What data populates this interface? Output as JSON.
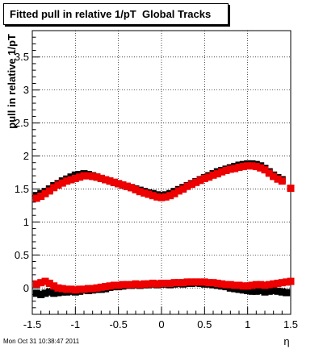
{
  "chart_data": {
    "type": "scatter",
    "title": "Fitted pull in relative 1/pT  Global Tracks",
    "xlabel": "η",
    "ylabel": "pull in relative 1/pT",
    "xlim": [
      -1.5,
      1.5
    ],
    "ylim": [
      -0.4,
      3.9
    ],
    "x_ticks": [
      "-1.5",
      "-1",
      "-0.5",
      "0",
      "0.5",
      "1",
      "1.5"
    ],
    "y_ticks": [
      "0",
      "0.5",
      "1",
      "1.5",
      "2",
      "2.5",
      "3",
      "3.5"
    ],
    "grid": true,
    "colors": {
      "black_series": "#000000",
      "red_series": "#ee0000"
    },
    "series": [
      {
        "color": "black",
        "points": [
          [
            -1.45,
            1.4
          ],
          [
            -1.4,
            1.43
          ],
          [
            -1.35,
            1.46
          ],
          [
            -1.3,
            1.5
          ],
          [
            -1.25,
            1.55
          ],
          [
            -1.2,
            1.58
          ],
          [
            -1.15,
            1.62
          ],
          [
            -1.1,
            1.65
          ],
          [
            -1.05,
            1.68
          ],
          [
            -1.0,
            1.71
          ],
          [
            -0.95,
            1.72
          ],
          [
            -0.9,
            1.73
          ],
          [
            -0.85,
            1.72
          ],
          [
            -0.8,
            1.7
          ],
          [
            -0.75,
            1.68
          ],
          [
            -0.7,
            1.66
          ],
          [
            -0.65,
            1.64
          ],
          [
            -0.6,
            1.62
          ],
          [
            -0.55,
            1.6
          ],
          [
            -0.5,
            1.58
          ],
          [
            -0.45,
            1.56
          ],
          [
            -0.4,
            1.54
          ],
          [
            -0.35,
            1.52
          ],
          [
            -0.3,
            1.5
          ],
          [
            -0.25,
            1.48
          ],
          [
            -0.2,
            1.46
          ],
          [
            -0.15,
            1.44
          ],
          [
            -0.1,
            1.43
          ],
          [
            -0.05,
            1.41
          ],
          [
            0.0,
            1.4
          ],
          [
            0.05,
            1.41
          ],
          [
            0.1,
            1.43
          ],
          [
            0.15,
            1.46
          ],
          [
            0.2,
            1.49
          ],
          [
            0.25,
            1.52
          ],
          [
            0.3,
            1.55
          ],
          [
            0.35,
            1.58
          ],
          [
            0.4,
            1.61
          ],
          [
            0.45,
            1.64
          ],
          [
            0.5,
            1.67
          ],
          [
            0.55,
            1.7
          ],
          [
            0.6,
            1.73
          ],
          [
            0.65,
            1.76
          ],
          [
            0.7,
            1.78
          ],
          [
            0.75,
            1.8
          ],
          [
            0.8,
            1.82
          ],
          [
            0.85,
            1.84
          ],
          [
            0.9,
            1.86
          ],
          [
            0.95,
            1.87
          ],
          [
            1.0,
            1.88
          ],
          [
            1.05,
            1.88
          ],
          [
            1.1,
            1.87
          ],
          [
            1.15,
            1.85
          ],
          [
            1.2,
            1.81
          ],
          [
            1.25,
            1.76
          ],
          [
            1.3,
            1.71
          ],
          [
            1.35,
            1.67
          ],
          [
            1.4,
            1.64
          ],
          [
            -1.45,
            -0.08
          ],
          [
            -1.4,
            -0.1
          ],
          [
            -1.35,
            -0.08
          ],
          [
            -1.3,
            -0.06
          ],
          [
            -1.25,
            -0.08
          ],
          [
            -1.2,
            -0.07
          ],
          [
            -1.15,
            -0.06
          ],
          [
            -1.1,
            -0.06
          ],
          [
            -1.05,
            -0.05
          ],
          [
            -1.0,
            -0.06
          ],
          [
            -0.95,
            -0.05
          ],
          [
            -0.9,
            -0.03
          ],
          [
            -0.85,
            -0.04
          ],
          [
            -0.8,
            -0.03
          ],
          [
            -0.75,
            -0.02
          ],
          [
            -0.7,
            -0.02
          ],
          [
            -0.65,
            -0.01
          ],
          [
            -0.6,
            0.01
          ],
          [
            -0.55,
            0.02
          ],
          [
            -0.5,
            0.02
          ],
          [
            -0.45,
            0.03
          ],
          [
            -0.4,
            0.04
          ],
          [
            -0.35,
            0.04
          ],
          [
            -0.3,
            0.05
          ],
          [
            -0.25,
            0.04
          ],
          [
            -0.2,
            0.05
          ],
          [
            -0.15,
            0.05
          ],
          [
            -0.1,
            0.06
          ],
          [
            -0.05,
            0.05
          ],
          [
            0.0,
            0.06
          ],
          [
            0.05,
            0.06
          ],
          [
            0.1,
            0.05
          ],
          [
            0.15,
            0.06
          ],
          [
            0.2,
            0.07
          ],
          [
            0.25,
            0.06
          ],
          [
            0.3,
            0.07
          ],
          [
            0.35,
            0.07
          ],
          [
            0.4,
            0.08
          ],
          [
            0.45,
            0.07
          ],
          [
            0.5,
            0.06
          ],
          [
            0.55,
            0.06
          ],
          [
            0.6,
            0.05
          ],
          [
            0.65,
            0.04
          ],
          [
            0.7,
            0.03
          ],
          [
            0.75,
            0.02
          ],
          [
            0.8,
            0.0
          ],
          [
            0.85,
            -0.01
          ],
          [
            0.9,
            -0.02
          ],
          [
            0.95,
            -0.03
          ],
          [
            1.0,
            -0.04
          ],
          [
            1.05,
            -0.05
          ],
          [
            1.1,
            -0.05
          ],
          [
            1.15,
            -0.04
          ],
          [
            1.2,
            -0.06
          ],
          [
            1.25,
            -0.05
          ],
          [
            1.3,
            -0.04
          ],
          [
            1.35,
            -0.05
          ],
          [
            1.4,
            -0.06
          ],
          [
            1.45,
            -0.07
          ]
        ]
      },
      {
        "color": "red",
        "points": [
          [
            -1.45,
            1.36
          ],
          [
            -1.4,
            1.39
          ],
          [
            -1.35,
            1.43
          ],
          [
            -1.3,
            1.47
          ],
          [
            -1.25,
            1.52
          ],
          [
            -1.2,
            1.56
          ],
          [
            -1.15,
            1.59
          ],
          [
            -1.1,
            1.62
          ],
          [
            -1.05,
            1.64
          ],
          [
            -1.0,
            1.66
          ],
          [
            -0.95,
            1.68
          ],
          [
            -0.9,
            1.7
          ],
          [
            -0.85,
            1.7
          ],
          [
            -0.8,
            1.69
          ],
          [
            -0.75,
            1.68
          ],
          [
            -0.7,
            1.66
          ],
          [
            -0.65,
            1.64
          ],
          [
            -0.6,
            1.62
          ],
          [
            -0.55,
            1.6
          ],
          [
            -0.5,
            1.58
          ],
          [
            -0.45,
            1.56
          ],
          [
            -0.4,
            1.54
          ],
          [
            -0.35,
            1.52
          ],
          [
            -0.3,
            1.49
          ],
          [
            -0.25,
            1.46
          ],
          [
            -0.2,
            1.44
          ],
          [
            -0.15,
            1.42
          ],
          [
            -0.1,
            1.4
          ],
          [
            -0.05,
            1.38
          ],
          [
            0.0,
            1.37
          ],
          [
            0.05,
            1.38
          ],
          [
            0.1,
            1.4
          ],
          [
            0.15,
            1.43
          ],
          [
            0.2,
            1.47
          ],
          [
            0.25,
            1.5
          ],
          [
            0.3,
            1.54
          ],
          [
            0.35,
            1.57
          ],
          [
            0.4,
            1.6
          ],
          [
            0.45,
            1.63
          ],
          [
            0.5,
            1.66
          ],
          [
            0.55,
            1.68
          ],
          [
            0.6,
            1.71
          ],
          [
            0.65,
            1.73
          ],
          [
            0.7,
            1.76
          ],
          [
            0.75,
            1.78
          ],
          [
            0.8,
            1.8
          ],
          [
            0.85,
            1.81
          ],
          [
            0.9,
            1.83
          ],
          [
            0.95,
            1.84
          ],
          [
            1.0,
            1.85
          ],
          [
            1.05,
            1.85
          ],
          [
            1.1,
            1.84
          ],
          [
            1.15,
            1.82
          ],
          [
            1.2,
            1.79
          ],
          [
            1.25,
            1.74
          ],
          [
            1.3,
            1.69
          ],
          [
            1.35,
            1.65
          ],
          [
            1.4,
            1.62
          ],
          [
            1.5,
            1.51
          ],
          [
            -1.45,
            0.06
          ],
          [
            -1.4,
            0.08
          ],
          [
            -1.35,
            0.1
          ],
          [
            -1.3,
            0.07
          ],
          [
            -1.25,
            0.03
          ],
          [
            -1.2,
            0.0
          ],
          [
            -1.15,
            -0.01
          ],
          [
            -1.1,
            -0.02
          ],
          [
            -1.05,
            -0.02
          ],
          [
            -1.0,
            -0.03
          ],
          [
            -0.95,
            -0.02
          ],
          [
            -0.9,
            -0.02
          ],
          [
            -0.85,
            -0.01
          ],
          [
            -0.8,
            -0.01
          ],
          [
            -0.75,
            0.0
          ],
          [
            -0.7,
            0.01
          ],
          [
            -0.65,
            0.02
          ],
          [
            -0.6,
            0.03
          ],
          [
            -0.55,
            0.04
          ],
          [
            -0.5,
            0.04
          ],
          [
            -0.45,
            0.05
          ],
          [
            -0.4,
            0.05
          ],
          [
            -0.35,
            0.05
          ],
          [
            -0.3,
            0.06
          ],
          [
            -0.25,
            0.05
          ],
          [
            -0.2,
            0.06
          ],
          [
            -0.15,
            0.06
          ],
          [
            -0.1,
            0.07
          ],
          [
            -0.05,
            0.06
          ],
          [
            0.0,
            0.07
          ],
          [
            0.05,
            0.07
          ],
          [
            0.1,
            0.07
          ],
          [
            0.15,
            0.08
          ],
          [
            0.2,
            0.08
          ],
          [
            0.25,
            0.08
          ],
          [
            0.3,
            0.09
          ],
          [
            0.35,
            0.09
          ],
          [
            0.4,
            0.09
          ],
          [
            0.45,
            0.09
          ],
          [
            0.5,
            0.09
          ],
          [
            0.55,
            0.08
          ],
          [
            0.6,
            0.08
          ],
          [
            0.65,
            0.07
          ],
          [
            0.7,
            0.06
          ],
          [
            0.75,
            0.05
          ],
          [
            0.8,
            0.05
          ],
          [
            0.85,
            0.04
          ],
          [
            0.9,
            0.04
          ],
          [
            0.95,
            0.03
          ],
          [
            1.0,
            0.03
          ],
          [
            1.05,
            0.04
          ],
          [
            1.1,
            0.05
          ],
          [
            1.15,
            0.05
          ],
          [
            1.2,
            0.04
          ],
          [
            1.25,
            0.05
          ],
          [
            1.3,
            0.06
          ],
          [
            1.35,
            0.07
          ],
          [
            1.4,
            0.08
          ],
          [
            1.45,
            0.09
          ],
          [
            1.5,
            0.1
          ]
        ]
      }
    ]
  },
  "footer": {
    "timestamp": "Mon Oct 31 10:38:47 2011"
  }
}
